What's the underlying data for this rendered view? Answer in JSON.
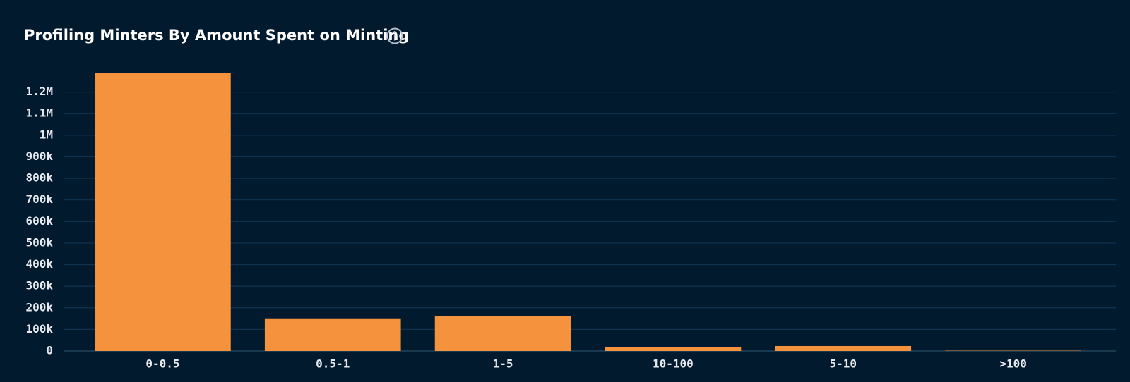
{
  "chart_data": {
    "type": "bar",
    "title": "Profiling Minters By Amount Spent on Minting",
    "categories": [
      "0-0.5",
      "0.5-1",
      "1-5",
      "10-100",
      "5-10",
      ">100"
    ],
    "values": [
      1290000,
      151000,
      161000,
      17000,
      23000,
      1500
    ],
    "color": "#f5923e",
    "ylim": [
      0,
      1300000
    ],
    "yticks": [
      0,
      {
        "value": 100000,
        "label": "100k"
      },
      {
        "value": 200000,
        "label": "200k"
      },
      {
        "value": 300000,
        "label": "300k"
      },
      {
        "value": 400000,
        "label": "400k"
      },
      {
        "value": 500000,
        "label": "500k"
      },
      {
        "value": 600000,
        "label": "600k"
      },
      {
        "value": 700000,
        "label": "700k"
      },
      {
        "value": 800000,
        "label": "800k"
      },
      {
        "value": 900000,
        "label": "900k"
      },
      {
        "value": 1000000,
        "label": "1M"
      },
      {
        "value": 1100000,
        "label": "1.1M"
      },
      {
        "value": 1200000,
        "label": "1.2M"
      }
    ],
    "grid": true
  }
}
